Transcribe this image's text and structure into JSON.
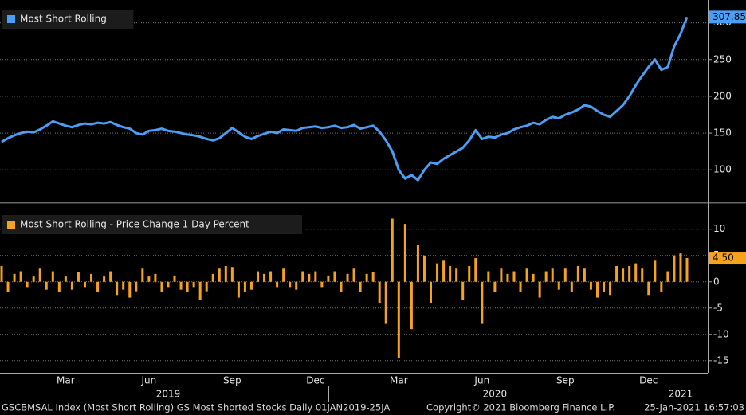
{
  "chart_data": [
    {
      "type": "line",
      "series": [
        {
          "name": "Most Short Rolling",
          "color": "#4a9ff5",
          "values": [
            138,
            143,
            147,
            150,
            152,
            151,
            155,
            160,
            166,
            163,
            160,
            158,
            161,
            163,
            162,
            164,
            163,
            165,
            161,
            158,
            156,
            150,
            148,
            153,
            154,
            156,
            153,
            152,
            150,
            148,
            147,
            145,
            142,
            140,
            143,
            150,
            157,
            151,
            145,
            142,
            146,
            149,
            152,
            150,
            155,
            154,
            153,
            157,
            158,
            159,
            157,
            158,
            160,
            157,
            158,
            161,
            156,
            158,
            160,
            152,
            140,
            125,
            100,
            88,
            93,
            86,
            100,
            110,
            108,
            115,
            120,
            125,
            130,
            140,
            154,
            142,
            145,
            144,
            148,
            150,
            155,
            158,
            160,
            164,
            162,
            168,
            172,
            170,
            175,
            178,
            182,
            188,
            186,
            180,
            175,
            172,
            180,
            188,
            200,
            215,
            228,
            240,
            250,
            236,
            240,
            268,
            285,
            307.85
          ]
        }
      ],
      "ylim": [
        58,
        331
      ],
      "yticks": [
        100,
        150,
        200,
        250,
        300
      ],
      "grid": true
    },
    {
      "type": "bar",
      "series": [
        {
          "name": "Most Short Rolling - Price Change 1 Day Percent",
          "color": "#f7a21b",
          "values": [
            3,
            -2,
            1.5,
            2,
            -1,
            1,
            2.5,
            -1.5,
            2,
            -2,
            1,
            -1.5,
            1.8,
            -1,
            1.5,
            -2,
            1,
            2,
            -2.5,
            -1.5,
            -3,
            -1.8,
            2.5,
            1,
            1.5,
            -2,
            -1,
            1.2,
            -1.5,
            -2,
            -1,
            -3.5,
            -1.8,
            1.5,
            2.5,
            3,
            2.8,
            -3,
            -2,
            -1.5,
            2,
            1.5,
            2,
            -1,
            2.5,
            -1,
            -1.5,
            2,
            1.5,
            2,
            -1,
            1.2,
            2,
            -2,
            1.5,
            2.5,
            -2,
            1.5,
            1.8,
            -4,
            -8,
            12,
            -14.5,
            11,
            -9,
            7,
            5,
            -4,
            3.5,
            4,
            3,
            2.5,
            -3.5,
            3,
            4.5,
            -8,
            2,
            -2,
            2.5,
            1.5,
            2,
            -2,
            2.5,
            1.5,
            -3,
            2,
            2.5,
            -1.5,
            2.5,
            -2,
            3,
            2.5,
            -1.5,
            -3,
            -2,
            -2.5,
            3,
            2.5,
            3,
            3.5,
            2.5,
            -2.5,
            4,
            -2,
            2,
            5,
            5.5,
            4.5
          ],
          "value_labels": {
            "107": "4.50"
          }
        }
      ],
      "ylim": [
        -17.3,
        14.5
      ],
      "yticks": [
        -15,
        -10,
        -5,
        0,
        5,
        10
      ],
      "grid": true,
      "categories": [
        null,
        null,
        null,
        null,
        null,
        null,
        null,
        null,
        null,
        null,
        "Mar",
        null,
        null,
        null,
        null,
        null,
        null,
        null,
        null,
        null,
        null,
        null,
        null,
        "Jun",
        null,
        null,
        null,
        null,
        null,
        null,
        null,
        null,
        null,
        null,
        null,
        null,
        "Sep",
        null,
        null,
        null,
        null,
        null,
        null,
        null,
        null,
        null,
        null,
        null,
        null,
        "Dec",
        null,
        null,
        null,
        null,
        null,
        null,
        null,
        null,
        null,
        null,
        null,
        null,
        "Mar",
        null,
        null,
        null,
        null,
        null,
        null,
        null,
        null,
        null,
        null,
        null,
        null,
        "Jun",
        null,
        null,
        null,
        null,
        null,
        null,
        null,
        null,
        null,
        null,
        null,
        null,
        "Sep",
        null,
        null,
        null,
        null,
        null,
        null,
        null,
        null,
        null,
        null,
        null,
        null,
        "Dec",
        null,
        null,
        null,
        null,
        null,
        null
      ],
      "year_categories": [
        null,
        null,
        null,
        null,
        null,
        null,
        null,
        null,
        null,
        null,
        null,
        null,
        null,
        null,
        null,
        null,
        null,
        null,
        null,
        null,
        null,
        null,
        null,
        null,
        null,
        null,
        "2019",
        null,
        null,
        null,
        null,
        null,
        null,
        null,
        null,
        null,
        null,
        null,
        null,
        null,
        null,
        null,
        null,
        null,
        null,
        null,
        null,
        null,
        null,
        null,
        null,
        null,
        null,
        null,
        null,
        null,
        null,
        null,
        null,
        null,
        null,
        null,
        null,
        null,
        null,
        null,
        null,
        null,
        null,
        null,
        null,
        null,
        null,
        null,
        null,
        null,
        null,
        "2020",
        null,
        null,
        null,
        null,
        null,
        null,
        null,
        null,
        null,
        null,
        null,
        null,
        null,
        null,
        null,
        null,
        null,
        null,
        null,
        null,
        null,
        null,
        null,
        null,
        null,
        null,
        null,
        null,
        "2021"
      ]
    }
  ],
  "footer": [
    "GSCBMSAL Index (Most Short Rolling) GS Most Shorted Stocks  Daily 01JAN2019-25JA",
    "Copyright© 2021 Bloomberg Finance L.P.",
    "25-Jan-2021 16:57:03"
  ]
}
